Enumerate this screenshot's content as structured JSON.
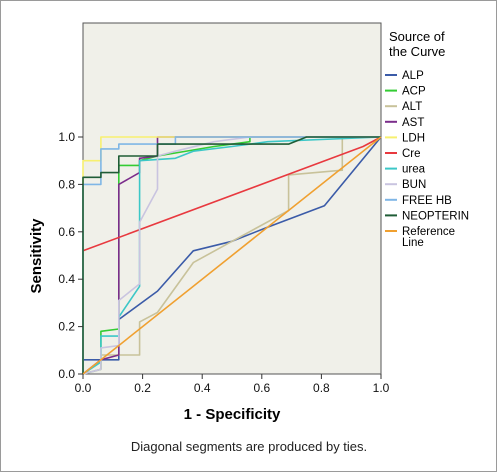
{
  "chart_data": {
    "type": "line",
    "title": "",
    "xlabel": "1 - Specificity",
    "ylabel": "Sensitivity",
    "xlim": [
      0,
      1
    ],
    "ylim": [
      0,
      1
    ],
    "x_ticks": [
      "0.0",
      "0.2",
      "0.4",
      "0.6",
      "0.8",
      "1.0"
    ],
    "y_ticks": [
      "0.0",
      "0.2",
      "0.4",
      "0.6",
      "0.8",
      "1.0"
    ],
    "grid": false,
    "legend_title": "Source of the Curve",
    "legend_title_lines": [
      "Source of",
      "the Curve"
    ],
    "legend_placement": "right",
    "footnote": "Diagonal segments are produced by ties.",
    "plot_background": "#f0f0e9",
    "series": [
      {
        "name": "ALP",
        "color": "#3b5ba8",
        "points": [
          [
            0,
            0
          ],
          [
            0,
            0.06
          ],
          [
            0.12,
            0.06
          ],
          [
            0.12,
            0.23
          ],
          [
            0.25,
            0.35
          ],
          [
            0.37,
            0.52
          ],
          [
            0.5,
            0.56
          ],
          [
            0.62,
            0.62
          ],
          [
            0.81,
            0.71
          ],
          [
            1,
            1
          ]
        ]
      },
      {
        "name": "ACP",
        "color": "#33cc33",
        "points": [
          [
            0,
            0
          ],
          [
            0.06,
            0.02
          ],
          [
            0.06,
            0.18
          ],
          [
            0.12,
            0.19
          ],
          [
            0.12,
            0.88
          ],
          [
            0.19,
            0.88
          ],
          [
            0.19,
            0.9
          ],
          [
            0.25,
            0.92
          ],
          [
            0.44,
            0.96
          ],
          [
            0.56,
            0.98
          ],
          [
            0.56,
            1
          ],
          [
            1,
            1
          ]
        ]
      },
      {
        "name": "ALT",
        "color": "#c8c29a",
        "points": [
          [
            0,
            0
          ],
          [
            0.06,
            0.02
          ],
          [
            0.06,
            0.08
          ],
          [
            0.12,
            0.08
          ],
          [
            0.19,
            0.08
          ],
          [
            0.19,
            0.22
          ],
          [
            0.25,
            0.26
          ],
          [
            0.37,
            0.47
          ],
          [
            0.5,
            0.56
          ],
          [
            0.69,
            0.69
          ],
          [
            0.69,
            0.84
          ],
          [
            0.87,
            0.86
          ],
          [
            0.87,
            1
          ],
          [
            1,
            1
          ]
        ]
      },
      {
        "name": "AST",
        "color": "#7b2d8b",
        "points": [
          [
            0,
            0
          ],
          [
            0.06,
            0.06
          ],
          [
            0.12,
            0.08
          ],
          [
            0.12,
            0.8
          ],
          [
            0.19,
            0.85
          ],
          [
            0.19,
            0.91
          ],
          [
            0.25,
            0.92
          ],
          [
            0.25,
            1
          ],
          [
            1,
            1
          ]
        ]
      },
      {
        "name": "LDH",
        "color": "#f7f070",
        "points": [
          [
            0,
            0
          ],
          [
            0,
            0.9
          ],
          [
            0.06,
            0.9
          ],
          [
            0.06,
            1
          ],
          [
            1,
            1
          ]
        ]
      },
      {
        "name": "Cre",
        "color": "#e8393f",
        "points": [
          [
            0,
            0.52
          ],
          [
            0.94,
            0.96
          ],
          [
            1,
            1
          ]
        ]
      },
      {
        "name": "urea",
        "color": "#3cc7c7",
        "points": [
          [
            0,
            0
          ],
          [
            0.06,
            0.05
          ],
          [
            0.06,
            0.16
          ],
          [
            0.12,
            0.16
          ],
          [
            0.12,
            0.24
          ],
          [
            0.19,
            0.37
          ],
          [
            0.19,
            0.9
          ],
          [
            0.31,
            0.91
          ],
          [
            0.37,
            0.94
          ],
          [
            0.5,
            0.96
          ],
          [
            0.62,
            0.98
          ],
          [
            1,
            1
          ]
        ]
      },
      {
        "name": "BUN",
        "color": "#c9c4e0",
        "points": [
          [
            0,
            0
          ],
          [
            0.06,
            0.02
          ],
          [
            0.06,
            0.11
          ],
          [
            0.12,
            0.12
          ],
          [
            0.12,
            0.31
          ],
          [
            0.19,
            0.38
          ],
          [
            0.19,
            0.64
          ],
          [
            0.25,
            0.78
          ],
          [
            0.25,
            0.92
          ],
          [
            0.31,
            0.94
          ],
          [
            0.44,
            0.98
          ],
          [
            0.56,
            1
          ],
          [
            1,
            1
          ]
        ]
      },
      {
        "name": "FREE HB",
        "color": "#7fb6e6",
        "points": [
          [
            0,
            0
          ],
          [
            0,
            0.8
          ],
          [
            0.06,
            0.8
          ],
          [
            0.06,
            0.95
          ],
          [
            0.12,
            0.95
          ],
          [
            0.12,
            0.97
          ],
          [
            0.31,
            0.97
          ],
          [
            0.31,
            1
          ],
          [
            1,
            1
          ]
        ]
      },
      {
        "name": "NEOPTERIN",
        "color": "#1f5c36",
        "points": [
          [
            0,
            0
          ],
          [
            0,
            0.83
          ],
          [
            0.06,
            0.83
          ],
          [
            0.06,
            0.85
          ],
          [
            0.12,
            0.85
          ],
          [
            0.12,
            0.92
          ],
          [
            0.25,
            0.92
          ],
          [
            0.25,
            0.97
          ],
          [
            0.69,
            0.97
          ],
          [
            0.75,
            1
          ],
          [
            1,
            1
          ]
        ]
      },
      {
        "name": "Reference Line",
        "legend_lines": [
          "Reference",
          "Line"
        ],
        "color": "#f0a030",
        "points": [
          [
            0,
            0
          ],
          [
            1,
            1
          ]
        ]
      }
    ]
  }
}
